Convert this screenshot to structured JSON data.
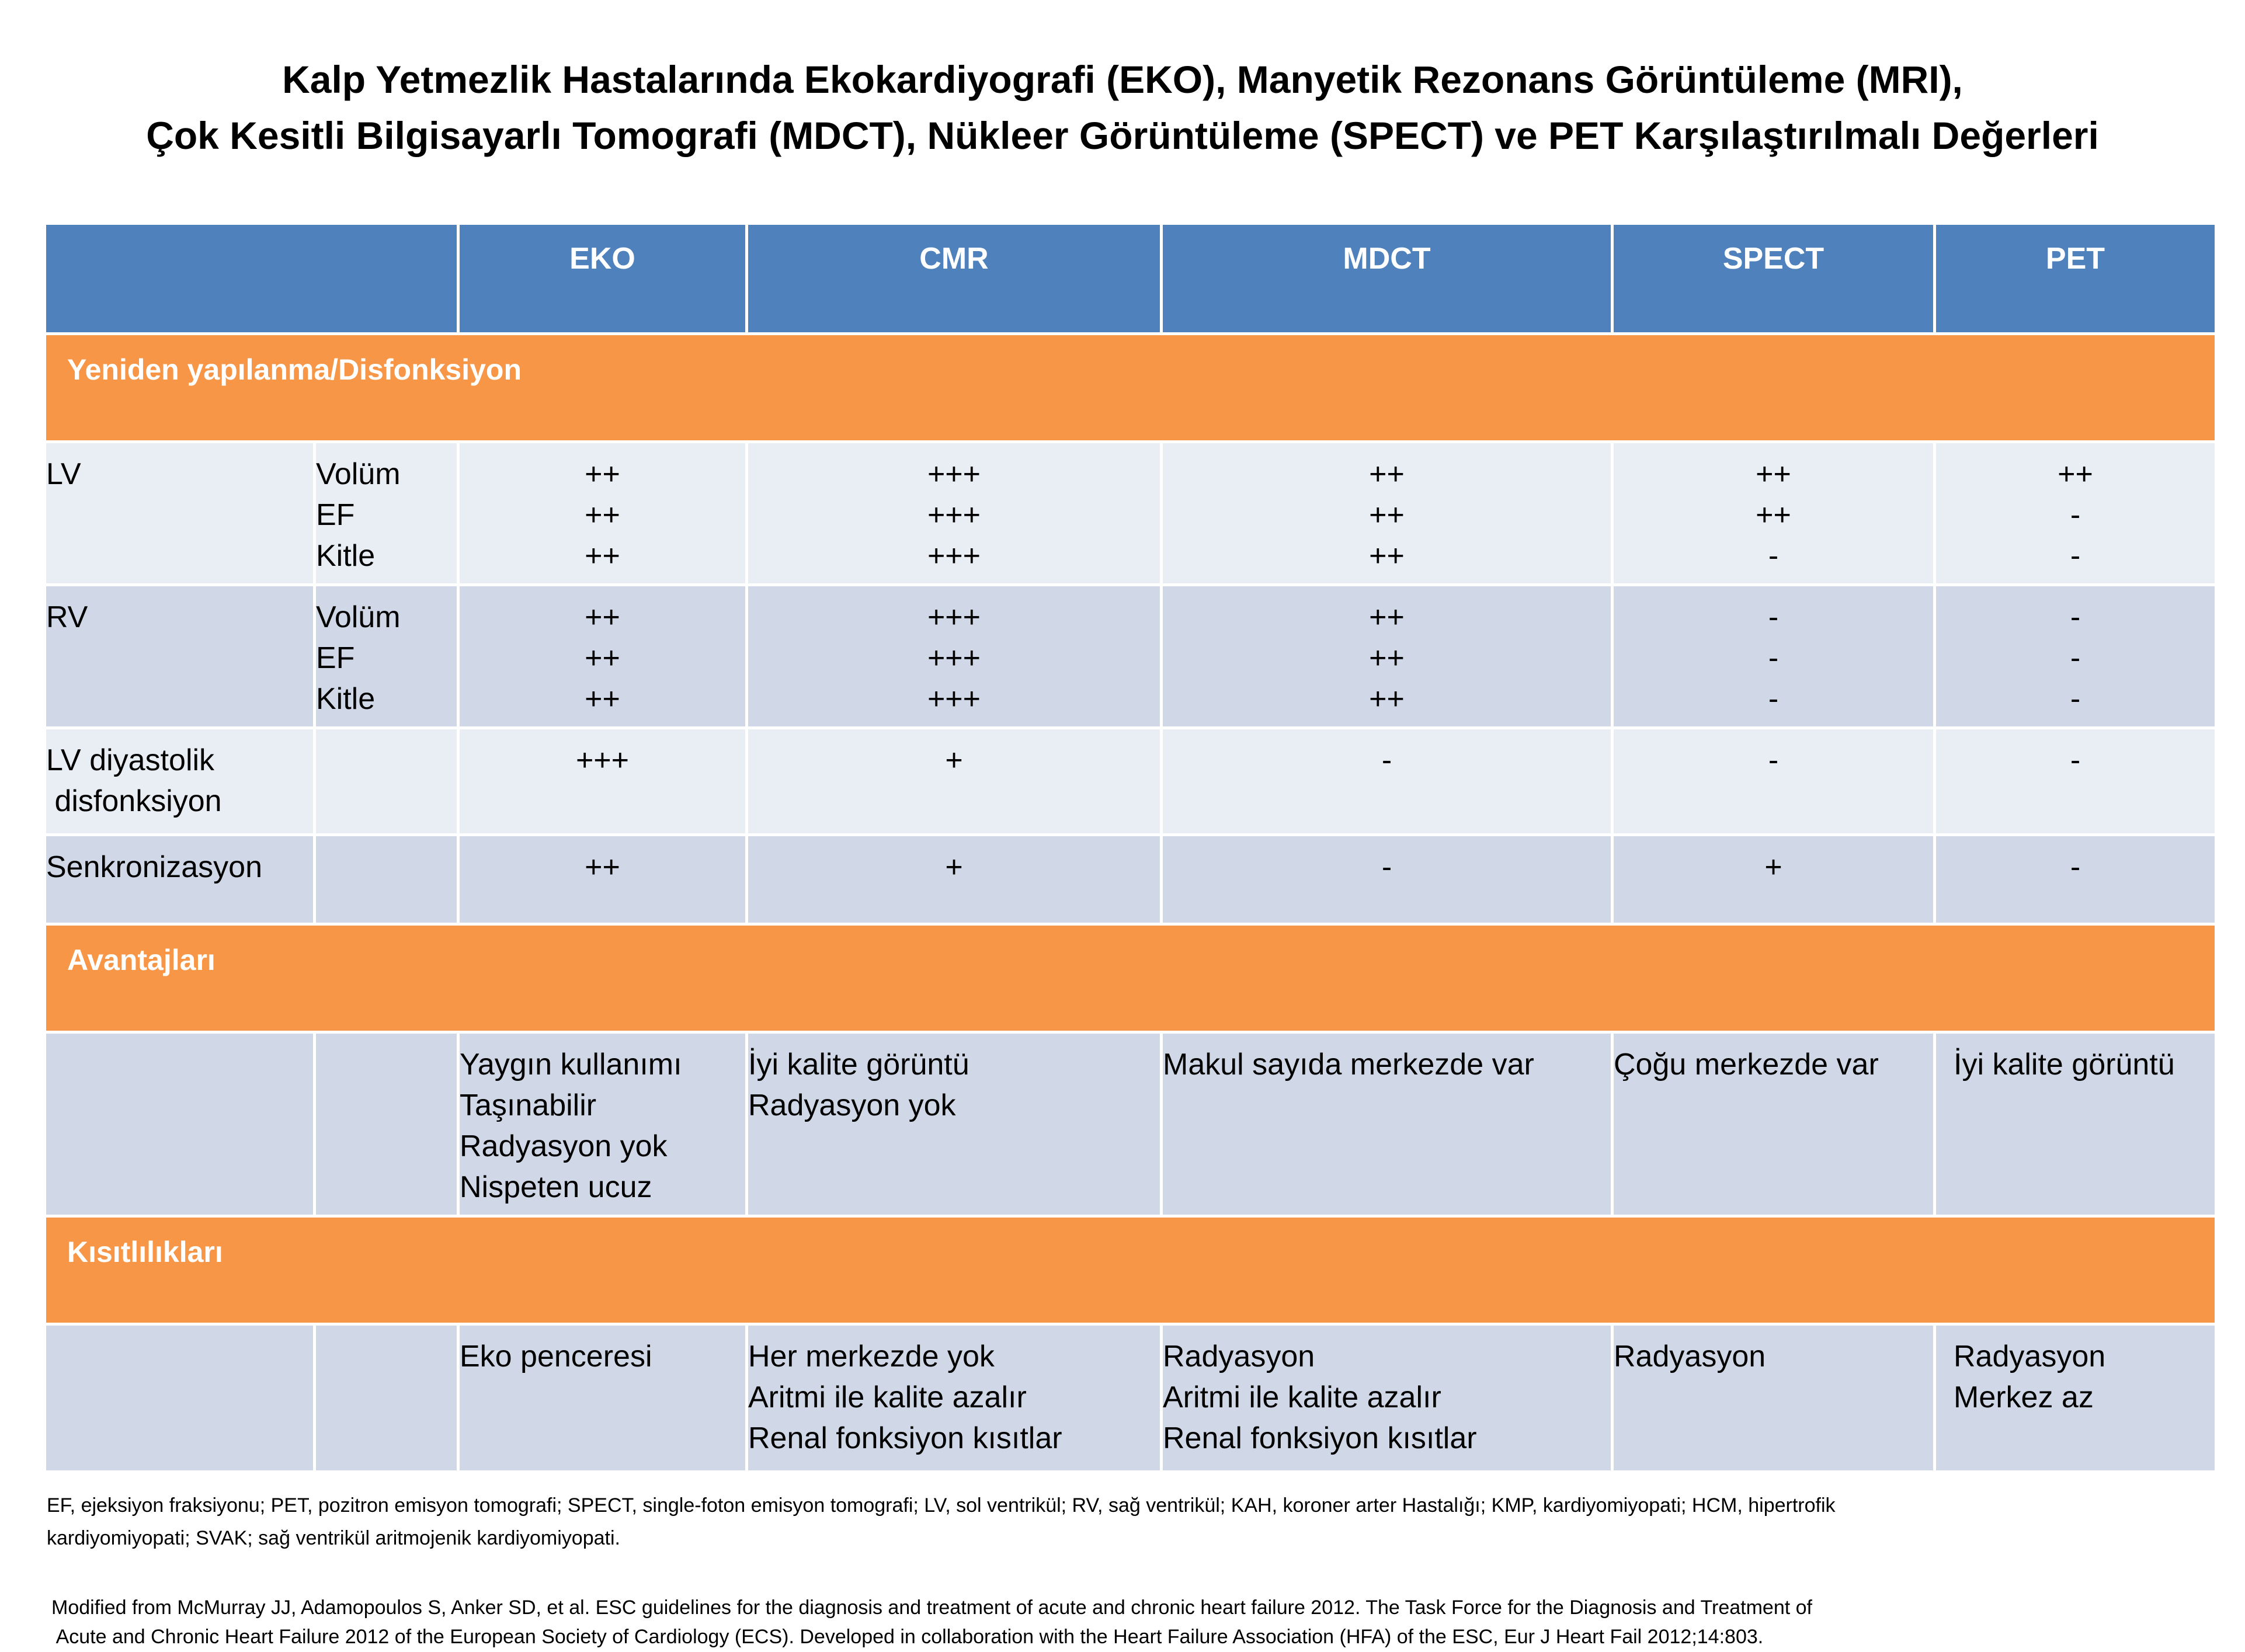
{
  "title": {
    "line1": "Kalp Yetmezlik Hastalarında Ekokardiyografi (EKO), Manyetik Rezonans Görüntüleme (MRI),",
    "line2": "Çok Kesitli Bilgisayarlı Tomografi (MDCT),  Nükleer Görüntüleme (SPECT) ve PET Karşılaştırılmalı Değerleri"
  },
  "columns": [
    "EKO",
    "CMR",
    "MDCT",
    "SPECT",
    "PET"
  ],
  "sections": {
    "remodel": "Yeniden yapılanma/Disfonksiyon",
    "advantages": "Avantajları",
    "limitations": "Kısıtlılıkları"
  },
  "rows": {
    "lv": {
      "label": "LV",
      "sub": [
        "Volüm",
        "EF",
        "Kitle"
      ],
      "eko": [
        "++",
        "++",
        "++"
      ],
      "cmr": [
        "+++",
        "+++",
        "+++"
      ],
      "mdct": [
        "++",
        "++",
        "++"
      ],
      "spect": [
        "++",
        "++",
        "-"
      ],
      "pet": [
        "++",
        "-",
        "-"
      ]
    },
    "rv": {
      "label": "RV",
      "sub": [
        "Volüm",
        "EF",
        "Kitle"
      ],
      "eko": [
        "++",
        "++",
        "++"
      ],
      "cmr": [
        "+++",
        "+++",
        "+++"
      ],
      "mdct": [
        "++",
        "++",
        "++"
      ],
      "spect": [
        "-",
        "-",
        "-"
      ],
      "pet": [
        "-",
        "-",
        "-"
      ]
    },
    "diastolic": {
      "label": [
        "LV diyastolik",
        " disfonksiyon"
      ],
      "eko": "+++",
      "cmr": "+",
      "mdct": "-",
      "spect": "-",
      "pet": "-"
    },
    "sync": {
      "label": "Senkronizasyon",
      "eko": "++",
      "cmr": "+",
      "mdct": "-",
      "spect": "+",
      "pet": "-"
    },
    "advantages": {
      "eko": [
        "Yaygın kullanımı",
        "Taşınabilir",
        "Radyasyon yok",
        "Nispeten ucuz"
      ],
      "cmr": [
        "İyi kalite görüntü",
        "Radyasyon yok"
      ],
      "mdct": [
        "Makul sayıda merkezde var"
      ],
      "spect": [
        "Çoğu merkezde var"
      ],
      "pet": [
        "İyi kalite görüntü"
      ]
    },
    "limitations": {
      "eko": [
        "Eko penceresi"
      ],
      "cmr": [
        "Her merkezde yok",
        "Aritmi ile kalite azalır",
        "Renal fonksiyon kısıtlar"
      ],
      "mdct": [
        "Radyasyon",
        "Aritmi ile kalite azalır",
        "Renal fonksiyon kısıtlar"
      ],
      "spect": [
        "Radyasyon"
      ],
      "pet": [
        "Radyasyon",
        "Merkez az"
      ]
    }
  },
  "footnote": {
    "line1": "EF, ejeksiyon fraksiyonu; PET, pozitron emisyon tomografi; SPECT, single-foton emisyon tomografi; LV, sol ventrikül; RV, sağ ventrikül; KAH, koroner arter Hastalığı; KMP, kardiyomiyopati; HCM, hipertrofik",
    "line2": "kardiyomiyopati; SVAK; sağ ventrikül aritmojenik kardiyomiyopati."
  },
  "source": {
    "line1": "Modified from McMurray JJ, Adamopoulos S, Anker SD, et al. ESC guidelines for the diagnosis and treatment of acute and chronic heart failure 2012. The Task Force for the Diagnosis and Treatment of",
    "line2": " Acute and Chronic Heart Failure 2012 of the European Society of Cardiology (ECS). Developed in collaboration with the Heart Failure Association (HFA) of the ESC, Eur J Heart Fail 2012;14:803."
  },
  "colors": {
    "header_blue": "#4f81bd",
    "section_orange": "#f79646",
    "row_light": "#e9edf4",
    "row_dark": "#d0d8e8"
  }
}
